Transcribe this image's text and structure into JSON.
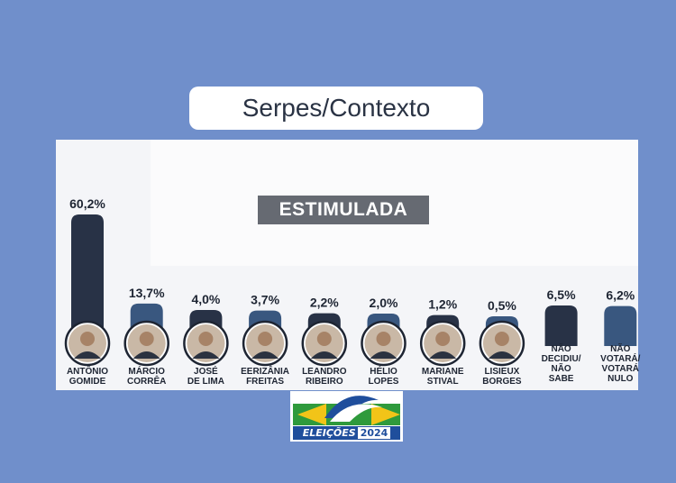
{
  "header": {
    "title": "Serpes/Contexto"
  },
  "badge": {
    "label": "ESTIMULADA"
  },
  "logo": {
    "word": "ELEIÇÕES",
    "year": "2024"
  },
  "colors": {
    "background": "#708fcb",
    "bar_dark": "#283246",
    "bar_blue": "#39577f"
  },
  "chart_data": {
    "type": "bar",
    "title": "",
    "xlabel": "",
    "ylabel": "",
    "ylim": [
      0,
      62
    ],
    "categories": [
      [
        "ANTÔNIO",
        "GOMIDE"
      ],
      [
        "MÁRCIO",
        "CORRÊA"
      ],
      [
        "JOSÉ",
        "DE LIMA"
      ],
      [
        "EERIZÂNIA",
        "FREITAS"
      ],
      [
        "LEANDRO",
        "RIBEIRO"
      ],
      [
        "HÉLIO",
        "LOPES"
      ],
      [
        "MARIANE",
        "STIVAL"
      ],
      [
        "LISIEUX",
        "BORGES"
      ],
      [
        "NÃO",
        "DECIDIU/",
        "NÃO",
        "SABE"
      ],
      [
        "NÃO",
        "VOTARÁ/",
        "VOTARÁ",
        "NULO"
      ]
    ],
    "values": [
      60.2,
      13.7,
      4.0,
      3.7,
      2.2,
      2.0,
      1.2,
      0.5,
      6.5,
      6.2
    ],
    "value_labels": [
      "60,2%",
      "13,7%",
      "4,0%",
      "3,7%",
      "2,2%",
      "2,0%",
      "1,2%",
      "0,5%",
      "6,5%",
      "6,2%"
    ],
    "bar_colors": [
      "#283246",
      "#39577f",
      "#283246",
      "#39577f",
      "#283246",
      "#39577f",
      "#283246",
      "#39577f",
      "#283246",
      "#39577f"
    ],
    "has_photo": [
      true,
      true,
      true,
      true,
      true,
      true,
      true,
      true,
      false,
      false
    ]
  }
}
